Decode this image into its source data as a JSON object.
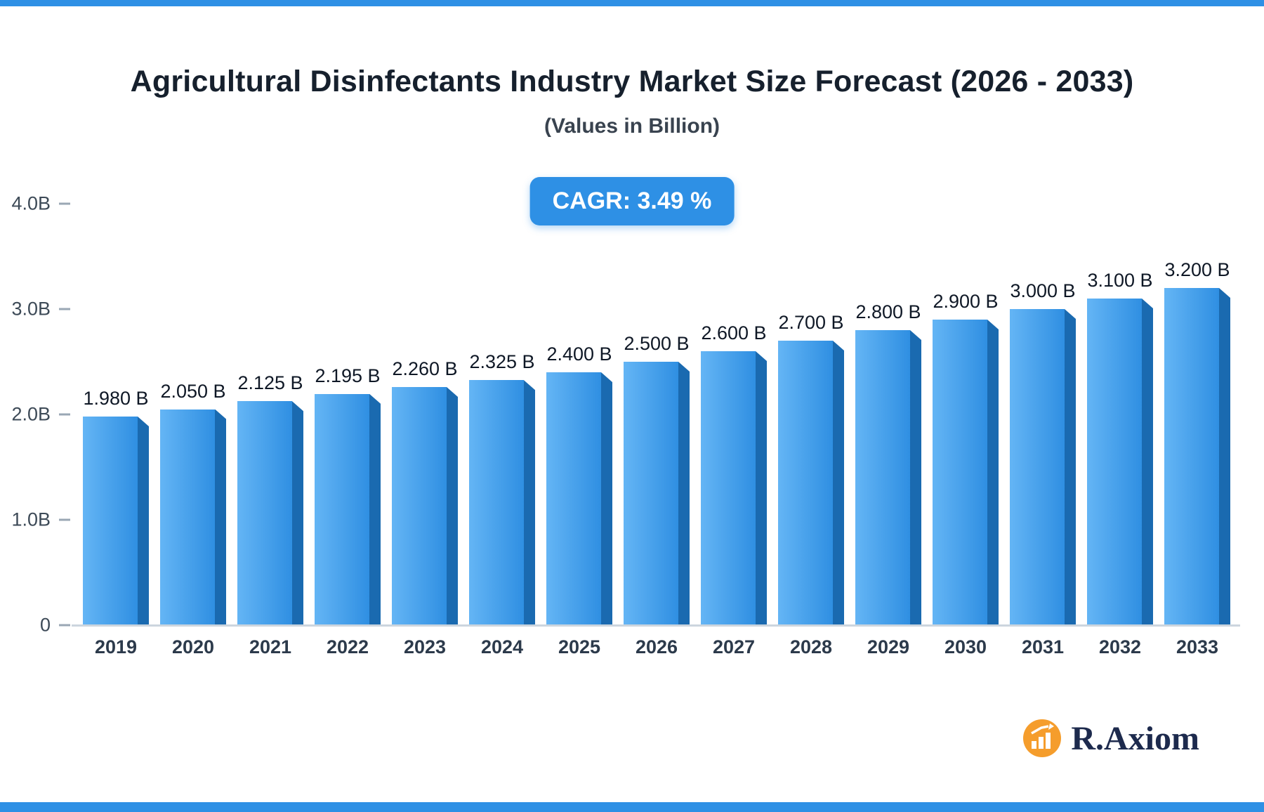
{
  "chart_data": {
    "type": "bar",
    "title": "Agricultural Disinfectants Industry Market Size Forecast (2026 - 2033)",
    "subtitle": "(Values in Billion)",
    "annotation": "CAGR: 3.49 %",
    "categories": [
      "2019",
      "2020",
      "2021",
      "2022",
      "2023",
      "2024",
      "2025",
      "2026",
      "2027",
      "2028",
      "2029",
      "2030",
      "2031",
      "2032",
      "2033"
    ],
    "values": [
      1.98,
      2.05,
      2.125,
      2.195,
      2.26,
      2.325,
      2.4,
      2.5,
      2.6,
      2.7,
      2.8,
      2.9,
      3.0,
      3.1,
      3.2
    ],
    "value_labels": [
      "1.980 B",
      "2.050 B",
      "2.125 B",
      "2.195 B",
      "2.260 B",
      "2.325 B",
      "2.400 B",
      "2.500 B",
      "2.600 B",
      "2.700 B",
      "2.800 B",
      "2.900 B",
      "3.000 B",
      "3.100 B",
      "3.200 B"
    ],
    "xlabel": "",
    "ylabel": "",
    "ylim": [
      0,
      4.0
    ],
    "yticks": [
      {
        "value": 4.0,
        "label": "4.0B"
      },
      {
        "value": 3.0,
        "label": "3.0B"
      },
      {
        "value": 2.0,
        "label": "2.0B"
      },
      {
        "value": 1.0,
        "label": "1.0B"
      },
      {
        "value": 0.0,
        "label": "0"
      }
    ],
    "grid": false,
    "legend": false,
    "colors": {
      "accent": "#2e90e5",
      "bar_front_light": "#64b5f5",
      "bar_front": "#2f8fe2",
      "bar_side": "#1a6ab0",
      "baseline": "#ccd5de"
    }
  },
  "branding": {
    "name": "R.Axiom",
    "logo_color": "#f59d2c"
  }
}
